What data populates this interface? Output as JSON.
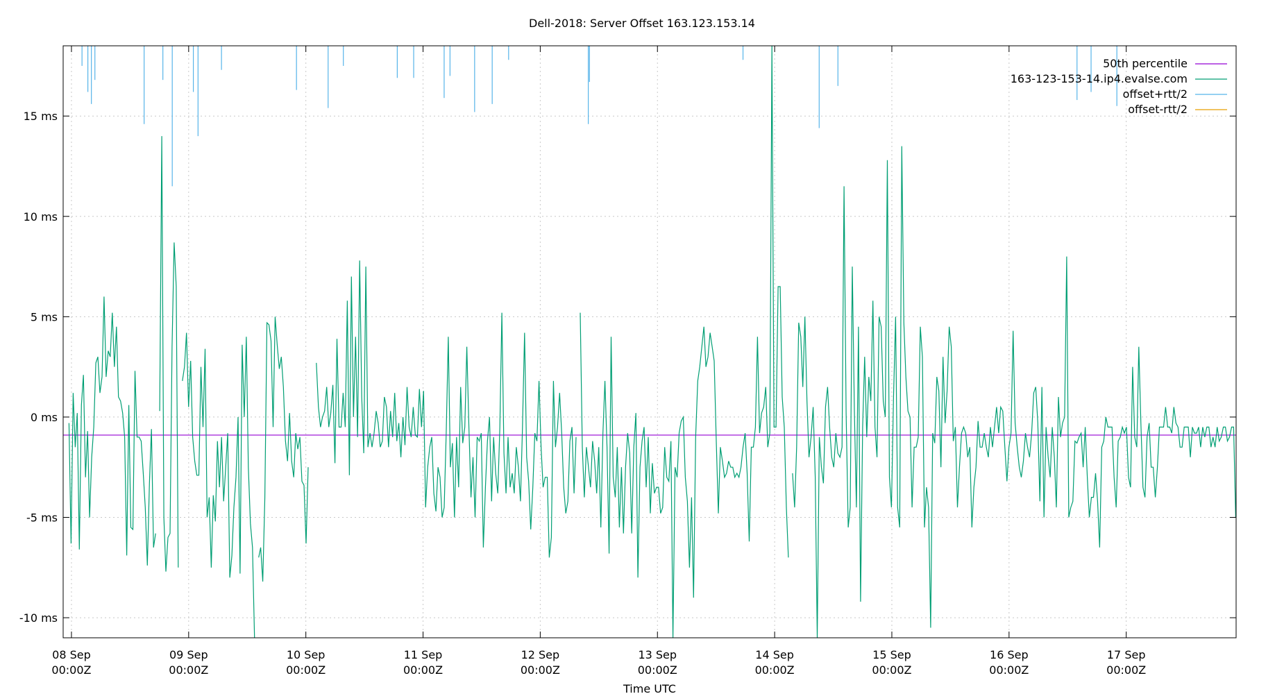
{
  "chart_data": {
    "type": "line",
    "title": "Dell-2018: Server Offset 163.123.153.14",
    "xlabel": "Time UTC",
    "ylabel": "",
    "y_unit": "ms",
    "ylim": [
      -11.0,
      18.5
    ],
    "xlim": [
      "2018-09-07T22:18Z",
      "2018-09-17T22:30Z"
    ],
    "y_ticks": [
      "-10 ms",
      "-5 ms",
      "0 ms",
      "5 ms",
      "10 ms",
      "15 ms"
    ],
    "y_tick_values": [
      -10,
      -5,
      0,
      5,
      10,
      15
    ],
    "x_ticks": [
      {
        "line1": "08 Sep",
        "line2": "00:00Z",
        "date": "2018-09-08T00:00Z"
      },
      {
        "line1": "09 Sep",
        "line2": "00:00Z",
        "date": "2018-09-09T00:00Z"
      },
      {
        "line1": "10 Sep",
        "line2": "00:00Z",
        "date": "2018-09-10T00:00Z"
      },
      {
        "line1": "11 Sep",
        "line2": "00:00Z",
        "date": "2018-09-11T00:00Z"
      },
      {
        "line1": "12 Sep",
        "line2": "00:00Z",
        "date": "2018-09-12T00:00Z"
      },
      {
        "line1": "13 Sep",
        "line2": "00:00Z",
        "date": "2018-09-13T00:00Z"
      },
      {
        "line1": "14 Sep",
        "line2": "00:00Z",
        "date": "2018-09-14T00:00Z"
      },
      {
        "line1": "15 Sep",
        "line2": "00:00Z",
        "date": "2018-09-15T00:00Z"
      },
      {
        "line1": "16 Sep",
        "line2": "00:00Z",
        "date": "2018-09-16T00:00Z"
      },
      {
        "line1": "17 Sep",
        "line2": "00:00Z",
        "date": "2018-09-17T00:00Z"
      }
    ],
    "grid": true,
    "legend_position": "top-right",
    "series": [
      {
        "name": "50th percentile",
        "color": "#9400d3",
        "kind": "hline",
        "value": -0.9
      },
      {
        "name": "163-123-153-14.ip4.evalse.com",
        "color": "#009e73",
        "kind": "line",
        "values": [
          -0.3,
          -6.3,
          1.2,
          -1.5,
          0.2,
          -6.6,
          0.6,
          2.1,
          -3.0,
          -0.7,
          -5.0,
          -2.0,
          -0.5,
          2.7,
          3.0,
          1.2,
          2.0,
          6.0,
          2.0,
          3.3,
          3.0,
          5.2,
          2.5,
          4.5,
          1.0,
          0.8,
          0.2,
          -1.0,
          -6.9,
          0.6,
          -5.5,
          -5.6,
          2.3,
          -1.0,
          -1.0,
          -1.2,
          -2.8,
          -4.5,
          -7.4,
          -3.3,
          -0.6,
          -6.5,
          -5.8,
          null,
          0.3,
          14.0,
          -5.0,
          -7.7,
          -6.0,
          -5.8,
          3.5,
          8.7,
          6.5,
          -7.5,
          null,
          1.8,
          2.5,
          4.2,
          0.5,
          2.8,
          -1.0,
          -2.2,
          -2.9,
          -2.9,
          2.5,
          -0.5,
          3.4,
          -5.0,
          -4.0,
          -7.5,
          -3.9,
          -5.2,
          -1.2,
          -3.5,
          -1.0,
          -4.2,
          -2.5,
          -0.8,
          -8.0,
          -6.9,
          -4.5,
          -3.0,
          0.0,
          -7.8,
          3.6,
          0.0,
          4.0,
          -2.5,
          -5.3,
          -6.5,
          -11.0,
          null,
          -7.0,
          -6.5,
          -8.2,
          -4.0,
          4.7,
          4.6,
          3.8,
          -0.5,
          5.0,
          3.6,
          2.4,
          3.0,
          1.5,
          -1.2,
          -2.2,
          0.2,
          -2.2,
          -3.0,
          -0.8,
          -1.6,
          -1.0,
          -3.2,
          -3.4,
          -6.3,
          -2.5,
          null,
          null,
          null,
          2.7,
          0.5,
          -0.5,
          0.0,
          0.3,
          1.5,
          -0.5,
          0.2,
          1.6,
          -2.3,
          3.9,
          -0.5,
          -0.5,
          1.2,
          -0.5,
          5.8,
          -2.9,
          7.0,
          0.0,
          4.0,
          -1.0,
          7.8,
          1.0,
          -1.8,
          7.5,
          -1.5,
          -0.8,
          -1.5,
          -0.8,
          0.3,
          -0.3,
          -1.5,
          -1.2,
          1.0,
          0.5,
          -1.5,
          0.3,
          -1.0,
          1.2,
          -1.2,
          -0.3,
          -2.0,
          0.0,
          -1.4,
          1.5,
          -0.5,
          -1.0,
          0.5,
          -0.9,
          -1.0,
          1.4,
          -0.5,
          1.3,
          -4.5,
          -2.5,
          -1.5,
          -1.0,
          -3.8,
          -4.7,
          -2.5,
          -3.0,
          -5.0,
          -4.5,
          -0.8,
          4.0,
          -2.5,
          -1.3,
          -5.0,
          -1.0,
          -3.5,
          1.5,
          -1.3,
          -0.5,
          3.5,
          -0.5,
          -4.0,
          -2.0,
          -5.0,
          -1.0,
          -1.2,
          -0.8,
          -6.5,
          -3.5,
          -1.2,
          0.0,
          -4.2,
          -1.0,
          -2.8,
          -3.8,
          -0.5,
          5.2,
          -1.8,
          -3.8,
          -1.0,
          -3.5,
          -2.8,
          -3.8,
          -1.5,
          -2.5,
          -4.2,
          -0.5,
          4.2,
          -2.0,
          -3.2,
          -5.6,
          -3.5,
          -0.8,
          -1.2,
          1.8,
          -1.5,
          -3.5,
          -3.0,
          -3.0,
          -7.0,
          -6.0,
          1.8,
          -1.5,
          -0.5,
          1.2,
          -0.8,
          -3.5,
          -4.8,
          -4.2,
          -1.2,
          -0.5,
          -3.8,
          -1.0,
          null,
          5.2,
          -1.5,
          -4.0,
          -1.5,
          -2.5,
          -3.5,
          -1.2,
          -2.2,
          -3.8,
          -1.5,
          -5.5,
          -0.8,
          1.8,
          -1.5,
          -6.8,
          4.0,
          -3.0,
          -4.0,
          -1.5,
          -5.5,
          -2.5,
          -5.8,
          -2.5,
          -0.8,
          -1.8,
          -5.8,
          -1.5,
          0.2,
          -8.0,
          -2.5,
          -1.2,
          -0.5,
          -3.5,
          -1.0,
          -4.8,
          -2.3,
          -3.8,
          -3.5,
          -3.5,
          -4.8,
          -4.5,
          -1.5,
          -3.0,
          -3.2,
          -1.2,
          -11.0,
          -2.5,
          -3.0,
          -0.8,
          -0.2,
          0.0,
          -3.0,
          -4.2,
          -7.5,
          -4.0,
          -9.0,
          -1.0,
          1.8,
          2.5,
          3.5,
          4.5,
          2.5,
          3.0,
          4.2,
          3.5,
          2.8,
          -1.2,
          -4.8,
          -1.5,
          -2.2,
          -3.0,
          -2.8,
          -2.2,
          -2.5,
          -2.5,
          -3.0,
          -2.8,
          -3.0,
          -2.5,
          -1.5,
          -0.8,
          -2.8,
          -6.2,
          -1.5,
          -1.5,
          -0.5,
          4.0,
          -0.8,
          0.2,
          0.5,
          1.5,
          -1.5,
          -0.8,
          18.5,
          -0.5,
          -0.5,
          6.5,
          6.5,
          1.0,
          -0.5,
          -4.5,
          -7.0,
          null,
          -2.8,
          -4.5,
          -1.5,
          4.7,
          4.0,
          1.5,
          5.0,
          0.8,
          -2.0,
          -1.0,
          0.5,
          -3.0,
          -11.0,
          -1.0,
          -2.5,
          -3.3,
          0.5,
          1.5,
          -0.5,
          -2.0,
          -2.5,
          -0.8,
          -1.8,
          -2.0,
          -1.5,
          11.5,
          0.2,
          -5.5,
          -4.5,
          7.5,
          0.3,
          -4.5,
          4.5,
          -9.2,
          -0.5,
          3.0,
          -1.0,
          2.0,
          0.8,
          5.8,
          -0.5,
          -2.0,
          5.0,
          4.5,
          0.8,
          0.0,
          12.8,
          -3.0,
          -4.5,
          1.0,
          5.0,
          -4.5,
          -5.5,
          13.5,
          4.7,
          2.0,
          0.3,
          0.0,
          -4.5,
          -1.5,
          -1.5,
          -1.0,
          4.5,
          3.0,
          -5.5,
          -3.5,
          -4.5,
          -10.5,
          -0.8,
          -1.3,
          2.0,
          1.3,
          -2.5,
          3.0,
          -0.3,
          1.3,
          4.5,
          3.5,
          -1.2,
          -0.5,
          -4.5,
          -2.5,
          -0.8,
          -0.5,
          -0.8,
          -2.0,
          -1.5,
          -5.5,
          -3.5,
          -2.5,
          -0.2,
          -1.5,
          -1.5,
          -0.8,
          -1.5,
          -2.0,
          -0.5,
          -1.5,
          -0.5,
          0.5,
          -0.8,
          0.5,
          0.3,
          -1.5,
          -3.2,
          -1.5,
          -0.8,
          4.3,
          -0.3,
          -1.5,
          -2.5,
          -3.0,
          -2.2,
          -0.8,
          -1.5,
          -2.0,
          -0.8,
          1.2,
          1.5,
          -0.3,
          -4.2,
          1.5,
          -5.0,
          -0.5,
          -2.0,
          -3.0,
          -0.5,
          -2.0,
          -4.5,
          1.0,
          -1.0,
          -0.3,
          0.0,
          8.0,
          -5.0,
          -4.5,
          -4.2,
          -1.2,
          -1.3,
          -1.0,
          -0.8,
          -2.5,
          -0.5,
          -3.0,
          -5.0,
          -4.0,
          -4.0,
          -2.8,
          -4.2,
          -6.5,
          -1.5,
          -1.2,
          0.0,
          -0.5,
          -0.5,
          -0.5,
          -3.0,
          -4.5,
          -1.2,
          -1.0,
          -0.5,
          -0.8,
          -0.5,
          -3.0,
          -3.5,
          2.5,
          -1.0,
          -1.5,
          3.5,
          -0.3,
          -3.5,
          -4.0,
          -1.0,
          -0.3,
          -2.5,
          -2.5,
          -4.0,
          -2.5,
          -0.5,
          -0.5,
          -0.5,
          0.5,
          -0.5,
          -0.5,
          -0.8,
          0.5,
          -0.3,
          -0.5,
          -1.5,
          -1.5,
          -0.5,
          -0.5,
          -0.5,
          -2.0,
          -0.5,
          -0.8,
          -0.8,
          -0.5,
          -1.5,
          -0.5,
          -1.0,
          -0.5,
          -0.5,
          -1.5,
          -1.0,
          -1.5,
          -0.5,
          -1.2,
          -1.0,
          -0.5,
          -0.5,
          -1.2,
          -1.0,
          -0.5,
          -0.5,
          -5.0
        ]
      },
      {
        "name": "offset+rtt/2",
        "color": "#56b4e9",
        "kind": "spikes",
        "spikes": [
          [
            0.09,
            17.5
          ],
          [
            0.14,
            16.2
          ],
          [
            0.17,
            15.6
          ],
          [
            0.2,
            16.8
          ],
          [
            0.62,
            14.6
          ],
          [
            0.78,
            16.8
          ],
          [
            0.86,
            11.5
          ],
          [
            1.04,
            16.2
          ],
          [
            1.08,
            14.0
          ],
          [
            1.28,
            17.3
          ],
          [
            1.92,
            16.3
          ],
          [
            2.19,
            15.4
          ],
          [
            2.32,
            17.5
          ],
          [
            2.78,
            16.9
          ],
          [
            2.92,
            16.9
          ],
          [
            3.18,
            15.9
          ],
          [
            3.23,
            17.0
          ],
          [
            3.44,
            15.2
          ],
          [
            3.59,
            15.6
          ],
          [
            3.73,
            17.8
          ],
          [
            4.41,
            14.6
          ],
          [
            4.42,
            16.7
          ],
          [
            5.73,
            17.8
          ],
          [
            6.38,
            14.4
          ],
          [
            6.54,
            16.5
          ],
          [
            8.58,
            15.8
          ],
          [
            8.7,
            16.2
          ],
          [
            8.92,
            15.5
          ]
        ]
      },
      {
        "name": "offset-rtt/2",
        "color": "#e69f00",
        "kind": "none"
      }
    ]
  }
}
